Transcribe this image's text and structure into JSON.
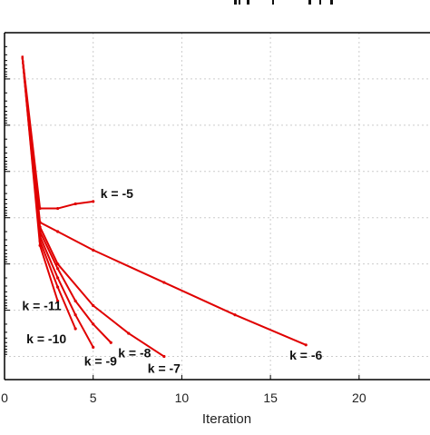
{
  "chart_data": {
    "type": "line",
    "title": "",
    "xlabel": "Iteration",
    "ylabel": "",
    "xlim": [
      0,
      24
    ],
    "x_ticks": [
      0,
      5,
      10,
      15,
      20
    ],
    "x_tick_labels": [
      "0",
      "5",
      "10",
      "15",
      "20"
    ],
    "y_axis_log_like": true,
    "grid": true,
    "colors": {
      "series": "#e00000",
      "grid": "#cccccc",
      "axis": "#000000"
    },
    "series": [
      {
        "name": "k = -5",
        "x": [
          1,
          2,
          3,
          4,
          5
        ],
        "y": [
          0.5,
          3.8,
          3.8,
          3.7,
          3.65
        ]
      },
      {
        "name": "k = -6",
        "x": [
          1,
          2,
          3,
          5,
          9,
          13,
          17
        ],
        "y": [
          0.5,
          4.1,
          4.3,
          4.7,
          5.4,
          6.1,
          6.75
        ]
      },
      {
        "name": "k = -7",
        "x": [
          1,
          2,
          3,
          5,
          7,
          9
        ],
        "y": [
          0.5,
          4.2,
          5.0,
          5.9,
          6.5,
          7.0
        ]
      },
      {
        "name": "k = -8",
        "x": [
          1,
          2,
          3,
          4,
          5,
          6
        ],
        "y": [
          0.5,
          4.3,
          5.1,
          5.8,
          6.3,
          6.7
        ]
      },
      {
        "name": "k = -9",
        "x": [
          1,
          2,
          3,
          4,
          5
        ],
        "y": [
          0.5,
          4.4,
          5.3,
          6.1,
          6.8
        ]
      },
      {
        "name": "k = -10",
        "x": [
          1,
          2,
          3,
          4
        ],
        "y": [
          0.5,
          4.5,
          5.5,
          6.4
        ]
      },
      {
        "name": "k = -11",
        "x": [
          1,
          2,
          3
        ],
        "y": [
          0.5,
          4.6,
          5.8
        ]
      }
    ],
    "annotations": [
      "k = -5",
      "k = -6",
      "k = -7",
      "k = -8",
      "k = -9",
      "k = -10",
      "k = -11"
    ]
  }
}
